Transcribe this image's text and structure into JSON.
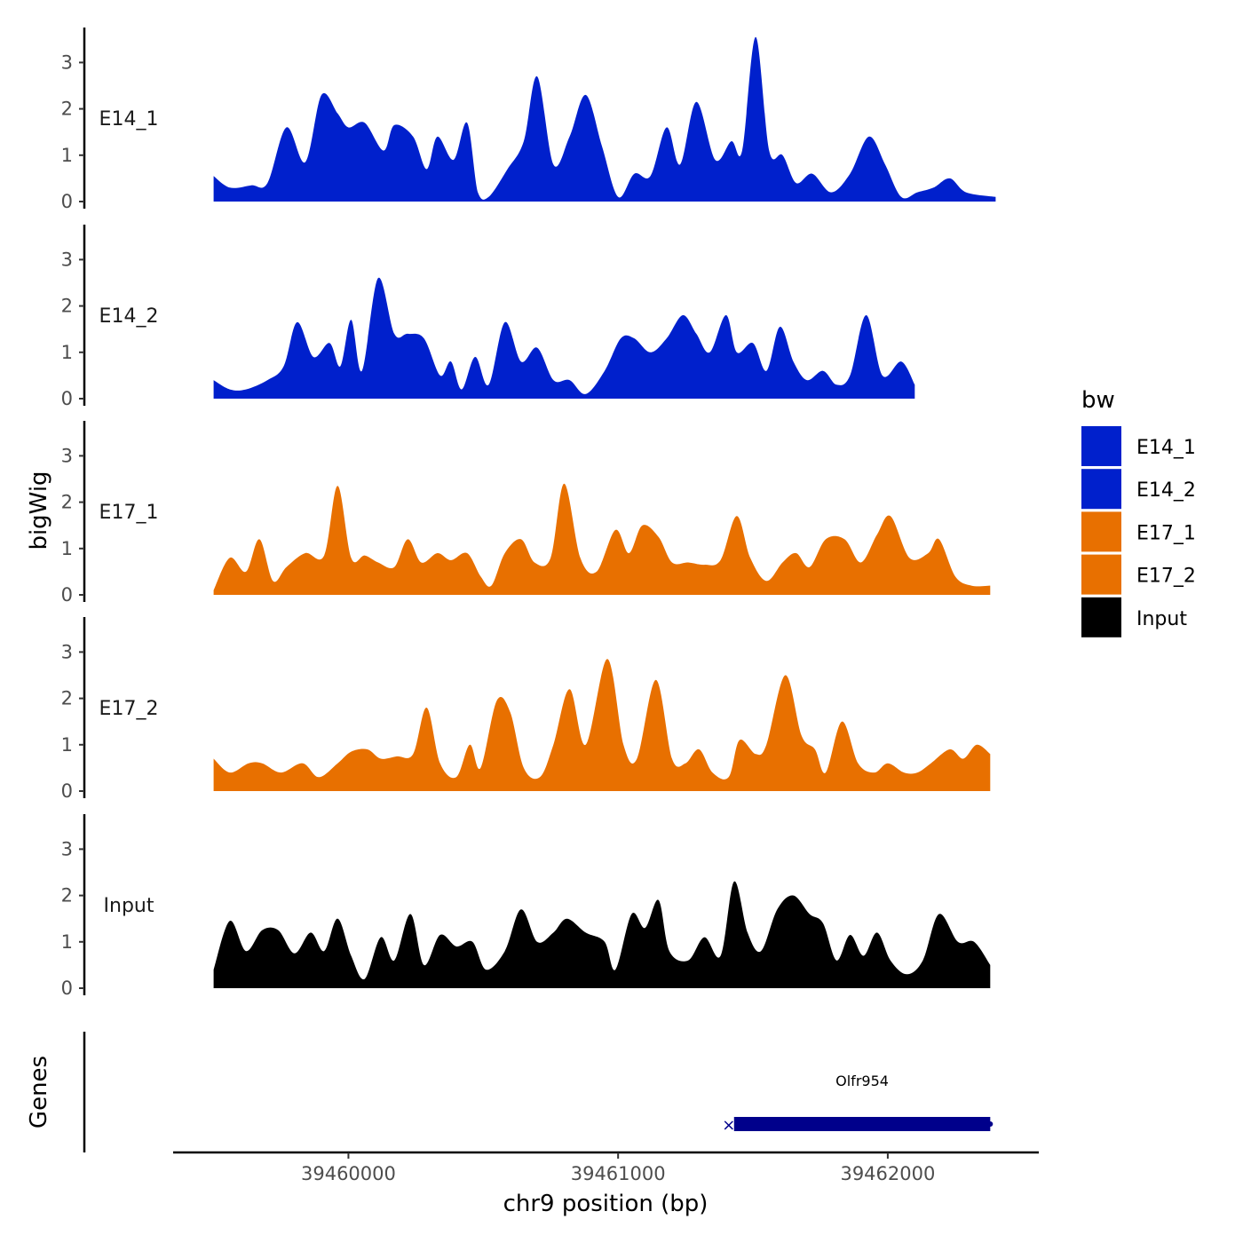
{
  "chart_data": {
    "type": "area",
    "chromosome": "chr9",
    "xlabel": "chr9 position (bp)",
    "ylabel": "bigWig",
    "gene_panel_label": "Genes",
    "xlim": [
      39459350,
      39462560
    ],
    "x_ticks": [
      39460000,
      39461000,
      39462000
    ],
    "x_tick_labels": [
      "39460000",
      "39461000",
      "39462000"
    ],
    "y_ticks": [
      0,
      1,
      2,
      3
    ],
    "y_tick_labels": [
      "0",
      "1",
      "2",
      "3"
    ],
    "ylim": [
      0,
      3.7
    ],
    "region_start": 39459500,
    "region_end": 39462400,
    "legend": {
      "title": "bw",
      "position": "right"
    },
    "series": [
      {
        "name": "E14_1",
        "track_label": "E14_1",
        "color": "#0020CC",
        "peaks": [
          [
            39459500,
            0.55
          ],
          [
            39459560,
            0.3
          ],
          [
            39459640,
            0.35
          ],
          [
            39459700,
            0.4
          ],
          [
            39459770,
            1.6
          ],
          [
            39459840,
            0.85
          ],
          [
            39459900,
            2.3
          ],
          [
            39459960,
            1.9
          ],
          [
            39460000,
            1.6
          ],
          [
            39460060,
            1.7
          ],
          [
            39460130,
            1.1
          ],
          [
            39460170,
            1.65
          ],
          [
            39460240,
            1.4
          ],
          [
            39460290,
            0.7
          ],
          [
            39460330,
            1.4
          ],
          [
            39460390,
            0.9
          ],
          [
            39460440,
            1.7
          ],
          [
            39460480,
            0.2
          ],
          [
            39460520,
            0.1
          ],
          [
            39460590,
            0.7
          ],
          [
            39460650,
            1.3
          ],
          [
            39460700,
            2.7
          ],
          [
            39460760,
            0.8
          ],
          [
            39460820,
            1.4
          ],
          [
            39460880,
            2.3
          ],
          [
            39460940,
            1.2
          ],
          [
            39461000,
            0.1
          ],
          [
            39461060,
            0.6
          ],
          [
            39461120,
            0.55
          ],
          [
            39461180,
            1.6
          ],
          [
            39461230,
            0.8
          ],
          [
            39461290,
            2.15
          ],
          [
            39461360,
            0.9
          ],
          [
            39461420,
            1.3
          ],
          [
            39461460,
            1.1
          ],
          [
            39461510,
            3.55
          ],
          [
            39461560,
            1.1
          ],
          [
            39461610,
            1.0
          ],
          [
            39461660,
            0.4
          ],
          [
            39461720,
            0.6
          ],
          [
            39461790,
            0.2
          ],
          [
            39461860,
            0.6
          ],
          [
            39461930,
            1.4
          ],
          [
            39461990,
            0.8
          ],
          [
            39462050,
            0.1
          ],
          [
            39462110,
            0.2
          ],
          [
            39462170,
            0.3
          ],
          [
            39462230,
            0.5
          ],
          [
            39462290,
            0.2
          ],
          [
            39462400,
            0.1
          ]
        ]
      },
      {
        "name": "E14_2",
        "track_label": "E14_2",
        "color": "#0020CC",
        "peaks": [
          [
            39459500,
            0.4
          ],
          [
            39459560,
            0.2
          ],
          [
            39459620,
            0.2
          ],
          [
            39459700,
            0.4
          ],
          [
            39459760,
            0.7
          ],
          [
            39459810,
            1.65
          ],
          [
            39459870,
            0.9
          ],
          [
            39459930,
            1.2
          ],
          [
            39459970,
            0.7
          ],
          [
            39460010,
            1.7
          ],
          [
            39460050,
            0.6
          ],
          [
            39460110,
            2.6
          ],
          [
            39460170,
            1.4
          ],
          [
            39460220,
            1.4
          ],
          [
            39460280,
            1.3
          ],
          [
            39460340,
            0.5
          ],
          [
            39460380,
            0.8
          ],
          [
            39460420,
            0.2
          ],
          [
            39460470,
            0.9
          ],
          [
            39460520,
            0.3
          ],
          [
            39460580,
            1.65
          ],
          [
            39460640,
            0.8
          ],
          [
            39460700,
            1.1
          ],
          [
            39460760,
            0.4
          ],
          [
            39460820,
            0.4
          ],
          [
            39460880,
            0.1
          ],
          [
            39460950,
            0.6
          ],
          [
            39461010,
            1.3
          ],
          [
            39461060,
            1.3
          ],
          [
            39461120,
            1.0
          ],
          [
            39461180,
            1.3
          ],
          [
            39461240,
            1.8
          ],
          [
            39461290,
            1.4
          ],
          [
            39461340,
            1.0
          ],
          [
            39461400,
            1.8
          ],
          [
            39461440,
            1.0
          ],
          [
            39461500,
            1.2
          ],
          [
            39461550,
            0.6
          ],
          [
            39461600,
            1.55
          ],
          [
            39461650,
            0.8
          ],
          [
            39461700,
            0.4
          ],
          [
            39461760,
            0.6
          ],
          [
            39461810,
            0.3
          ],
          [
            39461860,
            0.5
          ],
          [
            39461920,
            1.8
          ],
          [
            39461980,
            0.5
          ],
          [
            39462050,
            0.8
          ],
          [
            39462100,
            0.3
          ]
        ]
      },
      {
        "name": "E17_1",
        "track_label": "E17_1",
        "color": "#E87000",
        "peaks": [
          [
            39459500,
            0.1
          ],
          [
            39459560,
            0.8
          ],
          [
            39459620,
            0.5
          ],
          [
            39459670,
            1.2
          ],
          [
            39459720,
            0.3
          ],
          [
            39459770,
            0.6
          ],
          [
            39459840,
            0.9
          ],
          [
            39459910,
            0.85
          ],
          [
            39459960,
            2.35
          ],
          [
            39460010,
            0.8
          ],
          [
            39460060,
            0.85
          ],
          [
            39460110,
            0.7
          ],
          [
            39460170,
            0.6
          ],
          [
            39460220,
            1.2
          ],
          [
            39460270,
            0.7
          ],
          [
            39460330,
            0.9
          ],
          [
            39460380,
            0.75
          ],
          [
            39460440,
            0.9
          ],
          [
            39460490,
            0.4
          ],
          [
            39460530,
            0.2
          ],
          [
            39460580,
            0.9
          ],
          [
            39460640,
            1.2
          ],
          [
            39460690,
            0.7
          ],
          [
            39460750,
            0.8
          ],
          [
            39460800,
            2.4
          ],
          [
            39460860,
            0.8
          ],
          [
            39460920,
            0.5
          ],
          [
            39460990,
            1.4
          ],
          [
            39461040,
            0.9
          ],
          [
            39461090,
            1.5
          ],
          [
            39461150,
            1.25
          ],
          [
            39461200,
            0.7
          ],
          [
            39461260,
            0.7
          ],
          [
            39461320,
            0.65
          ],
          [
            39461380,
            0.75
          ],
          [
            39461440,
            1.7
          ],
          [
            39461490,
            0.8
          ],
          [
            39461550,
            0.3
          ],
          [
            39461610,
            0.7
          ],
          [
            39461660,
            0.9
          ],
          [
            39461710,
            0.6
          ],
          [
            39461770,
            1.2
          ],
          [
            39461840,
            1.2
          ],
          [
            39461900,
            0.7
          ],
          [
            39461960,
            1.3
          ],
          [
            39462010,
            1.7
          ],
          [
            39462080,
            0.8
          ],
          [
            39462150,
            0.9
          ],
          [
            39462190,
            1.2
          ],
          [
            39462250,
            0.4
          ],
          [
            39462310,
            0.2
          ],
          [
            39462380,
            0.2
          ]
        ]
      },
      {
        "name": "E17_2",
        "track_label": "E17_2",
        "color": "#E87000",
        "peaks": [
          [
            39459500,
            0.7
          ],
          [
            39459560,
            0.4
          ],
          [
            39459630,
            0.6
          ],
          [
            39459680,
            0.6
          ],
          [
            39459750,
            0.4
          ],
          [
            39459830,
            0.6
          ],
          [
            39459890,
            0.3
          ],
          [
            39459960,
            0.6
          ],
          [
            39460010,
            0.85
          ],
          [
            39460070,
            0.9
          ],
          [
            39460120,
            0.7
          ],
          [
            39460180,
            0.75
          ],
          [
            39460240,
            0.8
          ],
          [
            39460290,
            1.8
          ],
          [
            39460340,
            0.6
          ],
          [
            39460400,
            0.3
          ],
          [
            39460450,
            1.0
          ],
          [
            39460490,
            0.5
          ],
          [
            39460550,
            1.95
          ],
          [
            39460600,
            1.7
          ],
          [
            39460650,
            0.5
          ],
          [
            39460710,
            0.3
          ],
          [
            39460760,
            1.0
          ],
          [
            39460820,
            2.2
          ],
          [
            39460880,
            1.0
          ],
          [
            39460960,
            2.85
          ],
          [
            39461020,
            1.0
          ],
          [
            39461070,
            0.7
          ],
          [
            39461140,
            2.4
          ],
          [
            39461200,
            0.7
          ],
          [
            39461250,
            0.6
          ],
          [
            39461300,
            0.9
          ],
          [
            39461350,
            0.4
          ],
          [
            39461410,
            0.3
          ],
          [
            39461450,
            1.1
          ],
          [
            39461510,
            0.8
          ],
          [
            39461550,
            1.0
          ],
          [
            39461620,
            2.5
          ],
          [
            39461680,
            1.2
          ],
          [
            39461730,
            0.9
          ],
          [
            39461770,
            0.4
          ],
          [
            39461830,
            1.5
          ],
          [
            39461890,
            0.6
          ],
          [
            39461950,
            0.4
          ],
          [
            39462000,
            0.6
          ],
          [
            39462060,
            0.4
          ],
          [
            39462110,
            0.4
          ],
          [
            39462160,
            0.6
          ],
          [
            39462230,
            0.9
          ],
          [
            39462280,
            0.7
          ],
          [
            39462330,
            1.0
          ],
          [
            39462380,
            0.8
          ]
        ]
      },
      {
        "name": "Input",
        "track_label": "Input",
        "color": "#000000",
        "peaks": [
          [
            39459500,
            0.4
          ],
          [
            39459560,
            1.45
          ],
          [
            39459620,
            0.8
          ],
          [
            39459680,
            1.25
          ],
          [
            39459740,
            1.25
          ],
          [
            39459800,
            0.75
          ],
          [
            39459860,
            1.2
          ],
          [
            39459910,
            0.8
          ],
          [
            39459960,
            1.5
          ],
          [
            39460010,
            0.7
          ],
          [
            39460060,
            0.2
          ],
          [
            39460120,
            1.1
          ],
          [
            39460170,
            0.6
          ],
          [
            39460230,
            1.6
          ],
          [
            39460280,
            0.5
          ],
          [
            39460340,
            1.15
          ],
          [
            39460400,
            0.9
          ],
          [
            39460460,
            1.0
          ],
          [
            39460510,
            0.4
          ],
          [
            39460580,
            0.8
          ],
          [
            39460640,
            1.7
          ],
          [
            39460700,
            1.0
          ],
          [
            39460760,
            1.2
          ],
          [
            39460810,
            1.5
          ],
          [
            39460880,
            1.2
          ],
          [
            39460950,
            1.0
          ],
          [
            39460990,
            0.4
          ],
          [
            39461050,
            1.6
          ],
          [
            39461100,
            1.3
          ],
          [
            39461150,
            1.9
          ],
          [
            39461190,
            0.8
          ],
          [
            39461260,
            0.6
          ],
          [
            39461320,
            1.1
          ],
          [
            39461380,
            0.7
          ],
          [
            39461430,
            2.3
          ],
          [
            39461480,
            1.2
          ],
          [
            39461530,
            0.8
          ],
          [
            39461590,
            1.7
          ],
          [
            39461650,
            2.0
          ],
          [
            39461710,
            1.6
          ],
          [
            39461760,
            1.4
          ],
          [
            39461810,
            0.6
          ],
          [
            39461860,
            1.15
          ],
          [
            39461910,
            0.7
          ],
          [
            39461960,
            1.2
          ],
          [
            39462010,
            0.6
          ],
          [
            39462070,
            0.3
          ],
          [
            39462130,
            0.6
          ],
          [
            39462190,
            1.6
          ],
          [
            39462260,
            1.0
          ],
          [
            39462320,
            1.0
          ],
          [
            39462380,
            0.5
          ]
        ]
      }
    ],
    "genes": [
      {
        "name": "Olfr954",
        "start": 39461430,
        "end": 39462380,
        "strand": "-",
        "color": "#00008B"
      }
    ]
  }
}
